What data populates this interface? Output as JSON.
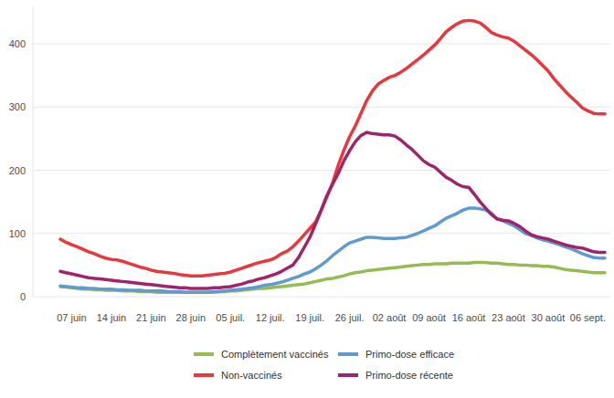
{
  "chart_data": {
    "type": "line",
    "categories": [
      null,
      null,
      "07 juin",
      null,
      null,
      null,
      null,
      null,
      null,
      "14 juin",
      null,
      null,
      null,
      null,
      null,
      null,
      "21 juin",
      null,
      null,
      null,
      null,
      null,
      null,
      "28 juin",
      null,
      null,
      null,
      null,
      null,
      null,
      "05 juil.",
      null,
      null,
      null,
      null,
      null,
      null,
      "12 juil.",
      null,
      null,
      null,
      null,
      null,
      null,
      "19 juil.",
      null,
      null,
      null,
      null,
      null,
      null,
      "26 juil.",
      null,
      null,
      null,
      null,
      null,
      null,
      "02 août",
      null,
      null,
      null,
      null,
      null,
      null,
      "09 août",
      null,
      null,
      null,
      null,
      null,
      null,
      "16 août",
      null,
      null,
      null,
      null,
      null,
      null,
      "23 août",
      null,
      null,
      null,
      null,
      null,
      null,
      "30 août",
      null,
      null,
      null,
      null,
      null,
      null,
      "06 sept.",
      null,
      null,
      null
    ],
    "series": [
      {
        "name": "Complètement vaccinés",
        "color": "#96bb53",
        "values": [
          16,
          15,
          14,
          13,
          12,
          12,
          11,
          11,
          10,
          10,
          10,
          9,
          9,
          9,
          8,
          8,
          8,
          7,
          7,
          7,
          7,
          7,
          7,
          7,
          7,
          7,
          7,
          7,
          8,
          8,
          9,
          9,
          10,
          11,
          12,
          13,
          13,
          14,
          15,
          16,
          17,
          18,
          19,
          20,
          22,
          24,
          26,
          28,
          29,
          31,
          33,
          36,
          38,
          39,
          41,
          42,
          43,
          44,
          45,
          46,
          47,
          48,
          49,
          50,
          51,
          51,
          52,
          52,
          52,
          53,
          53,
          53,
          53,
          54,
          54,
          54,
          53,
          53,
          52,
          51,
          51,
          50,
          50,
          49,
          49,
          48,
          48,
          47,
          45,
          43,
          42,
          41,
          40,
          39,
          38,
          38,
          38
        ]
      },
      {
        "name": "Primo-dose efficace",
        "color": "#5f9bd1",
        "values": [
          17,
          16,
          15,
          14,
          14,
          13,
          13,
          12,
          12,
          12,
          11,
          11,
          10,
          10,
          10,
          9,
          9,
          9,
          9,
          8,
          8,
          8,
          7,
          7,
          7,
          7,
          7,
          8,
          8,
          9,
          10,
          11,
          12,
          13,
          14,
          16,
          18,
          19,
          21,
          23,
          26,
          29,
          32,
          36,
          39,
          44,
          50,
          57,
          65,
          72,
          79,
          85,
          88,
          91,
          94,
          94,
          93,
          92,
          92,
          92,
          93,
          94,
          97,
          100,
          104,
          108,
          112,
          118,
          124,
          128,
          132,
          137,
          140,
          140,
          139,
          137,
          132,
          123,
          120,
          116,
          112,
          106,
          100,
          97,
          93,
          90,
          88,
          85,
          82,
          79,
          76,
          72,
          68,
          65,
          62,
          61,
          61
        ]
      },
      {
        "name": "Non-vaccinés",
        "color": "#e8383d",
        "values": [
          91,
          86,
          82,
          79,
          75,
          71,
          68,
          64,
          61,
          59,
          58,
          56,
          53,
          50,
          47,
          45,
          42,
          40,
          39,
          38,
          37,
          35,
          34,
          33,
          33,
          33,
          34,
          35,
          36,
          37,
          39,
          42,
          45,
          48,
          51,
          54,
          56,
          58,
          62,
          68,
          72,
          79,
          88,
          98,
          108,
          118,
          137,
          158,
          180,
          208,
          232,
          253,
          270,
          290,
          310,
          325,
          336,
          342,
          347,
          350,
          355,
          361,
          368,
          375,
          382,
          390,
          398,
          408,
          419,
          426,
          432,
          436,
          437,
          436,
          433,
          426,
          418,
          414,
          411,
          409,
          404,
          397,
          390,
          383,
          375,
          366,
          357,
          345,
          335,
          325,
          316,
          308,
          299,
          294,
          290,
          289,
          289
        ]
      },
      {
        "name": "Primo-dose récente",
        "color": "#a0246b",
        "values": [
          40,
          38,
          36,
          34,
          32,
          30,
          29,
          28,
          27,
          26,
          25,
          24,
          23,
          22,
          21,
          20,
          19,
          18,
          17,
          16,
          15,
          14,
          14,
          13,
          13,
          13,
          13,
          14,
          14,
          15,
          16,
          18,
          20,
          23,
          25,
          28,
          30,
          33,
          36,
          40,
          45,
          50,
          62,
          78,
          94,
          115,
          137,
          160,
          178,
          195,
          215,
          231,
          245,
          255,
          260,
          258,
          257,
          256,
          256,
          254,
          248,
          240,
          233,
          224,
          215,
          209,
          205,
          197,
          189,
          184,
          178,
          174,
          173,
          162,
          150,
          140,
          130,
          123,
          121,
          120,
          116,
          111,
          104,
          98,
          95,
          93,
          91,
          88,
          85,
          82,
          80,
          78,
          77,
          74,
          71,
          70,
          70
        ]
      }
    ],
    "ylim": [
      0,
      460
    ],
    "yticks": [
      0,
      100,
      200,
      300,
      400
    ],
    "grid": true,
    "legend": "bottom"
  }
}
